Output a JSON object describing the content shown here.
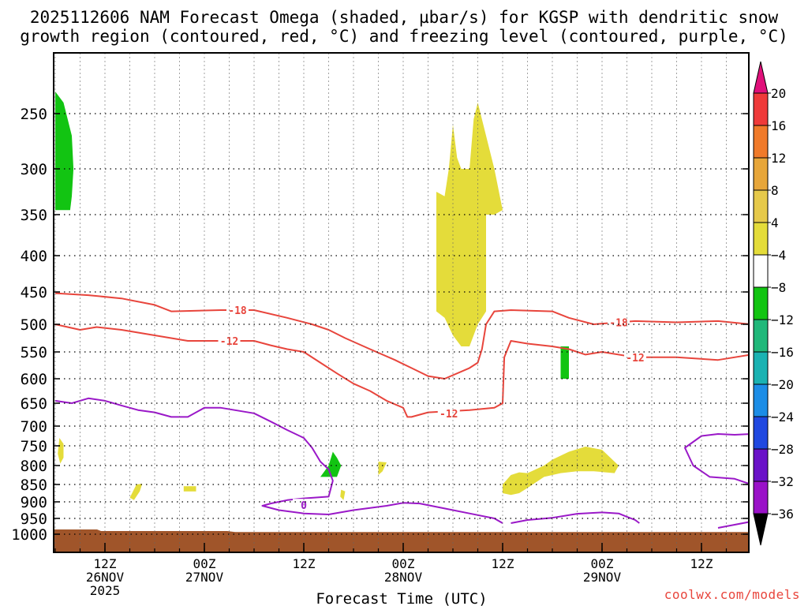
{
  "chart_data": {
    "type": "time-height cross section",
    "title_line1": "2025112606 NAM Forecast Omega (shaded, µbar/s) for KGSP with dendritic snow",
    "title_line2": "growth region (contoured, red, °C) and freezing level (contoured, purple, °C)",
    "xlabel": "Forecast Time (UTC)",
    "ylabel": "",
    "x_range_hours": [
      0,
      84
    ],
    "y_range_hpa": [
      200,
      1030
    ],
    "y_ticks": [
      250,
      300,
      350,
      400,
      450,
      500,
      550,
      600,
      650,
      700,
      750,
      800,
      850,
      900,
      950,
      1000
    ],
    "x_ticks": [
      {
        "hour": 6,
        "label": "12Z",
        "sub": "26NOV",
        "sub2": "2025"
      },
      {
        "hour": 18,
        "label": "00Z",
        "sub": "27NOV",
        "sub2": ""
      },
      {
        "hour": 30,
        "label": "12Z",
        "sub": "",
        "sub2": ""
      },
      {
        "hour": 42,
        "label": "00Z",
        "sub": "28NOV",
        "sub2": ""
      },
      {
        "hour": 54,
        "label": "12Z",
        "sub": "",
        "sub2": ""
      },
      {
        "hour": 66,
        "label": "00Z",
        "sub": "29NOV",
        "sub2": ""
      },
      {
        "hour": 78,
        "label": "12Z",
        "sub": "",
        "sub2": ""
      }
    ],
    "colorbar": {
      "levels": [
        20,
        16,
        12,
        8,
        4,
        -4,
        -8,
        -12,
        -16,
        -20,
        -24,
        -28,
        -32,
        -36
      ],
      "colors": [
        "#ef3a3a",
        "#f07a2a",
        "#e7a63a",
        "#e6c94a",
        "#e4dc3a",
        "#ffffff",
        "#12c412",
        "#20b87a",
        "#1ab2b2",
        "#1c8de6",
        "#2048e0",
        "#6a12c8",
        "#9a12c8",
        "#a8a8a8"
      ],
      "over_color": "#e0107a",
      "under_color": "#000000"
    },
    "contours": {
      "dgz_minus18": {
        "label": "-18",
        "color": "#e8453c",
        "points": [
          [
            0,
            452
          ],
          [
            4,
            455
          ],
          [
            8,
            460
          ],
          [
            12,
            470
          ],
          [
            14,
            480
          ],
          [
            20,
            478
          ],
          [
            24,
            478
          ],
          [
            28,
            490
          ],
          [
            31,
            500
          ],
          [
            33,
            510
          ],
          [
            35,
            525
          ],
          [
            38,
            545
          ],
          [
            41,
            565
          ],
          [
            43,
            580
          ],
          [
            45,
            595
          ],
          [
            47,
            600
          ],
          [
            50,
            580
          ],
          [
            51,
            570
          ],
          [
            51.5,
            545
          ],
          [
            52,
            500
          ],
          [
            53,
            480
          ],
          [
            55,
            478
          ],
          [
            60,
            480
          ],
          [
            62,
            490
          ],
          [
            65,
            500
          ],
          [
            70,
            495
          ],
          [
            75,
            497
          ],
          [
            80,
            495
          ],
          [
            84,
            500
          ]
        ]
      },
      "dgz_minus12_left": {
        "label": "-12",
        "color": "#e8453c",
        "points": [
          [
            0,
            500
          ],
          [
            3,
            510
          ],
          [
            5,
            505
          ],
          [
            8,
            510
          ],
          [
            12,
            520
          ],
          [
            16,
            530
          ],
          [
            20,
            530
          ],
          [
            24,
            530
          ],
          [
            26,
            538
          ],
          [
            28,
            545
          ],
          [
            30,
            550
          ],
          [
            32,
            570
          ],
          [
            34,
            590
          ],
          [
            36,
            610
          ],
          [
            38,
            625
          ],
          [
            40,
            645
          ],
          [
            42,
            660
          ],
          [
            42.5,
            680
          ],
          [
            43,
            680
          ],
          [
            45,
            670
          ],
          [
            50,
            665
          ],
          [
            53,
            660
          ],
          [
            54,
            650
          ],
          [
            54.2,
            560
          ],
          [
            55,
            530
          ],
          [
            57,
            535
          ],
          [
            60,
            540
          ],
          [
            62,
            545
          ],
          [
            64,
            555
          ],
          [
            66,
            550
          ],
          [
            70,
            560
          ],
          [
            75,
            560
          ],
          [
            80,
            565
          ],
          [
            84,
            555
          ]
        ]
      },
      "dgz_minus12_label1": {
        "label": "-12",
        "hour": 21,
        "hpa": 530
      },
      "dgz_minus12_label2": {
        "label": "-12",
        "hour": 47.5,
        "hpa": 672
      },
      "dgz_minus12_label3": {
        "label": "-12",
        "hour": 70,
        "hpa": 560
      },
      "dgz_minus18_label1": {
        "label": "-18",
        "hour": 22,
        "hpa": 478
      },
      "dgz_minus18_label2": {
        "label": "-18",
        "hour": 68,
        "hpa": 497
      },
      "freezing_level": {
        "label": "0",
        "color": "#9a18c8",
        "points": [
          [
            0,
            645
          ],
          [
            2,
            650
          ],
          [
            4,
            640
          ],
          [
            6,
            645
          ],
          [
            8,
            655
          ],
          [
            10,
            665
          ],
          [
            12,
            670
          ],
          [
            14,
            680
          ],
          [
            16,
            680
          ],
          [
            18,
            660
          ],
          [
            20,
            660
          ],
          [
            24,
            672
          ],
          [
            26,
            690
          ],
          [
            28,
            710
          ],
          [
            30,
            730
          ],
          [
            31,
            755
          ],
          [
            32,
            790
          ],
          [
            33,
            810
          ],
          [
            33.5,
            840
          ],
          [
            33,
            885
          ],
          [
            30,
            890
          ],
          [
            28,
            895
          ],
          [
            26,
            905
          ],
          [
            25,
            912
          ],
          [
            27,
            925
          ],
          [
            30,
            935
          ],
          [
            33,
            938
          ],
          [
            36,
            925
          ],
          [
            40,
            912
          ],
          [
            42,
            903
          ],
          [
            44,
            905
          ],
          [
            47,
            920
          ],
          [
            50,
            935
          ],
          [
            53,
            950
          ],
          [
            54,
            965
          ]
        ]
      },
      "freezing_level_right": {
        "label": "0",
        "color": "#9a18c8",
        "points": [
          [
            55,
            965
          ],
          [
            57,
            955
          ],
          [
            60,
            948
          ],
          [
            63,
            936
          ],
          [
            66,
            932
          ],
          [
            68,
            935
          ],
          [
            69,
            945
          ],
          [
            70,
            955
          ],
          [
            70.5,
            965
          ]
        ]
      },
      "freezing_level_far_right": {
        "label": "0",
        "color": "#9a18c8",
        "points": [
          [
            84,
            720
          ],
          [
            82,
            722
          ],
          [
            80,
            720
          ],
          [
            78,
            725
          ],
          [
            76,
            755
          ],
          [
            77,
            800
          ],
          [
            79,
            830
          ],
          [
            82,
            835
          ],
          [
            84,
            850
          ]
        ]
      },
      "freezing_level_corner": {
        "label": "0",
        "color": "#9a18c8",
        "points": [
          [
            80,
            980
          ],
          [
            82,
            970
          ],
          [
            84,
            960
          ]
        ]
      },
      "freezing_label": {
        "label": "0",
        "hour": 30,
        "hpa": 910
      }
    },
    "omega_regions": [
      {
        "name": "green-upper-left",
        "color": "#12c412",
        "points": [
          [
            0,
            230
          ],
          [
            1,
            240
          ],
          [
            2,
            270
          ],
          [
            2.2,
            300
          ],
          [
            2,
            330
          ],
          [
            1.8,
            345
          ],
          [
            0,
            345
          ]
        ]
      },
      {
        "name": "yellow-central-upper",
        "color": "#e4dc3a",
        "points": [
          [
            46,
            325
          ],
          [
            47,
            330
          ],
          [
            47.5,
            300
          ],
          [
            48,
            260
          ],
          [
            48.5,
            290
          ],
          [
            49,
            300
          ],
          [
            50,
            300
          ],
          [
            50.5,
            255
          ],
          [
            51,
            240
          ],
          [
            52,
            270
          ],
          [
            53,
            300
          ],
          [
            54,
            345
          ],
          [
            53,
            350
          ],
          [
            52,
            350
          ],
          [
            52,
            480
          ],
          [
            51,
            500
          ],
          [
            50,
            540
          ],
          [
            49,
            540
          ],
          [
            48,
            520
          ],
          [
            47,
            490
          ],
          [
            46,
            480
          ]
        ]
      },
      {
        "name": "green-right-mid",
        "color": "#12c412",
        "points": [
          [
            61,
            540
          ],
          [
            62,
            540
          ],
          [
            62,
            600
          ],
          [
            61,
            600
          ]
        ]
      },
      {
        "name": "green-lower-mid",
        "color": "#12c412",
        "points": [
          [
            32,
            830
          ],
          [
            33,
            800
          ],
          [
            33.5,
            765
          ],
          [
            34,
            780
          ],
          [
            34.5,
            800
          ],
          [
            34,
            830
          ],
          [
            32.5,
            830
          ]
        ]
      },
      {
        "name": "yellow-right-lower",
        "color": "#e4dc3a",
        "points": [
          [
            54,
            850
          ],
          [
            55,
            825
          ],
          [
            56,
            818
          ],
          [
            57,
            820
          ],
          [
            59,
            800
          ],
          [
            60,
            785
          ],
          [
            62,
            765
          ],
          [
            64,
            752
          ],
          [
            66,
            760
          ],
          [
            67,
            780
          ],
          [
            68,
            800
          ],
          [
            67.5,
            820
          ],
          [
            65,
            815
          ],
          [
            63,
            815
          ],
          [
            61,
            820
          ],
          [
            59,
            830
          ],
          [
            57,
            860
          ],
          [
            56,
            875
          ],
          [
            55,
            880
          ],
          [
            54,
            875
          ]
        ]
      },
      {
        "name": "yellow-left-small-1",
        "color": "#e4dc3a",
        "points": [
          [
            0.5,
            730
          ],
          [
            1,
            745
          ],
          [
            1,
            780
          ],
          [
            0.6,
            795
          ],
          [
            0.3,
            770
          ]
        ]
      },
      {
        "name": "yellow-left-small-2",
        "color": "#e4dc3a",
        "points": [
          [
            9.8,
            850
          ],
          [
            10.5,
            848
          ],
          [
            10.2,
            870
          ],
          [
            9.5,
            895
          ],
          [
            9,
            888
          ]
        ]
      },
      {
        "name": "yellow-left-small-3",
        "color": "#e4dc3a",
        "points": [
          [
            15.5,
            855
          ],
          [
            17,
            855
          ],
          [
            17,
            870
          ],
          [
            15.5,
            870
          ]
        ]
      },
      {
        "name": "yellow-mid-small-1",
        "color": "#e4dc3a",
        "points": [
          [
            39,
            790
          ],
          [
            40,
            792
          ],
          [
            39.5,
            815
          ],
          [
            39,
            825
          ]
        ]
      },
      {
        "name": "yellow-mid-small-2",
        "color": "#e4dc3a",
        "points": [
          [
            34.5,
            865
          ],
          [
            35,
            870
          ],
          [
            34.8,
            895
          ],
          [
            34.4,
            885
          ]
        ]
      }
    ],
    "ground": {
      "color": "#a0552a",
      "level_hpa_top_left": 985,
      "level_hpa_top_right": 993
    }
  },
  "credit": "coolwx.com/models"
}
